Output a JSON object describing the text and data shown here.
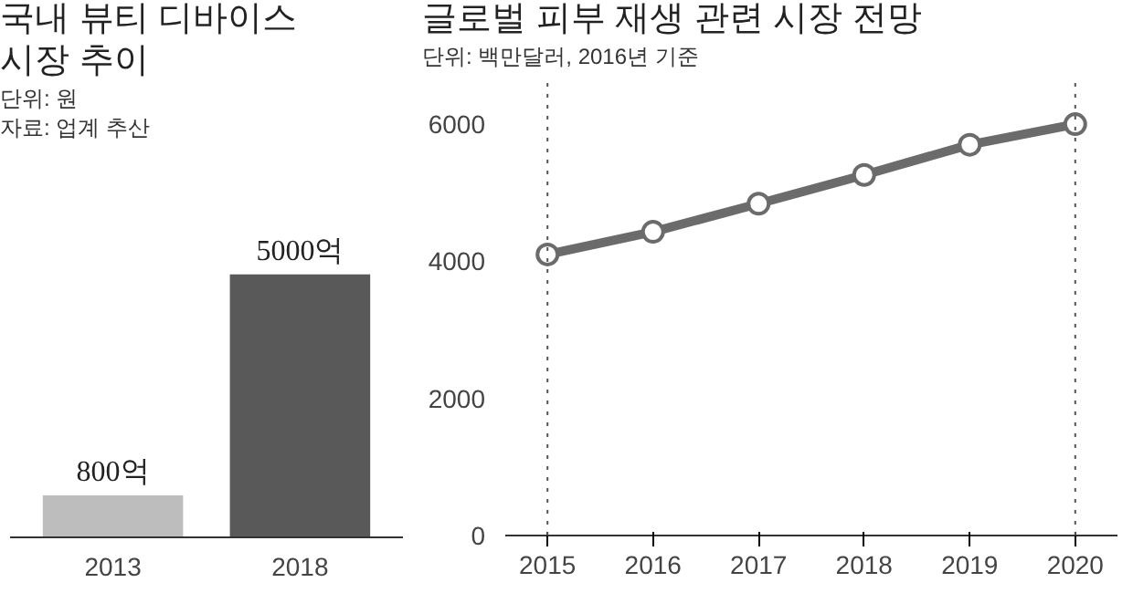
{
  "chart_data": [
    {
      "type": "bar",
      "title": "국내 뷰티 디바이스\n시장 추이",
      "categories": [
        "2013",
        "2018"
      ],
      "values": [
        800,
        5000
      ],
      "colors": [
        "#bdbdbd",
        "#595959"
      ],
      "value_labels": [
        "800억",
        "5000억"
      ],
      "annotations": [
        "단위: 원",
        "자료: 업계 추산"
      ],
      "grid": false
    },
    {
      "type": "line",
      "title": "글로벌 피부 재생 관련 시장 전망",
      "annotations": [
        "단위: 백만달러, 2016년 기준"
      ],
      "x": [
        2015,
        2016,
        2017,
        2018,
        2019,
        2020
      ],
      "series": [
        {
          "color": "#6b6b6b",
          "values": [
            4100,
            4430,
            4840,
            5260,
            5700,
            6000
          ]
        }
      ],
      "xlim": [
        2014.6,
        2020.4
      ],
      "xticks": [
        2015,
        2016,
        2017,
        2018,
        2019,
        2020
      ],
      "ylim": [
        0,
        6600
      ],
      "yticks": [
        0,
        2000,
        4000,
        6000
      ],
      "ref_lines": [
        {
          "axis": "x",
          "value": 2015,
          "line_style": "dotted",
          "color": "#555555"
        },
        {
          "axis": "x",
          "value": 2020,
          "line_style": "dotted",
          "color": "#555555"
        }
      ],
      "marker": "circle",
      "line_style": "solid",
      "grid": false
    }
  ]
}
